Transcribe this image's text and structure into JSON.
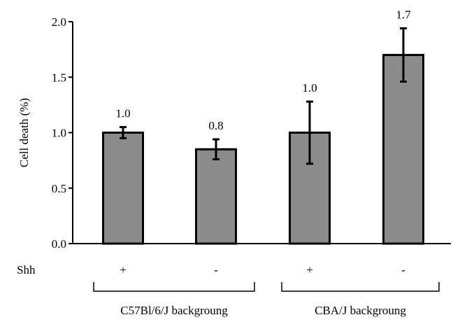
{
  "chart_data": {
    "type": "bar",
    "ylabel": "Cell death (%)",
    "ylim": [
      0,
      2.0
    ],
    "yticks": [
      "0.0",
      "0.5",
      "1.0",
      "1.5",
      "2.0"
    ],
    "grid": false,
    "legend": "none",
    "row_label": "Shh",
    "categories": [
      "+",
      "-",
      "+",
      "-"
    ],
    "values": [
      1.0,
      0.85,
      1.0,
      1.7
    ],
    "error_low": [
      0.95,
      0.76,
      0.72,
      1.46
    ],
    "error_high": [
      1.05,
      0.94,
      1.28,
      1.94
    ],
    "data_labels": [
      "1.0",
      "0.8",
      "1.0",
      "1.7"
    ],
    "groups": [
      {
        "label": "C57Bl/6/J backgroung",
        "bars": [
          0,
          1
        ]
      },
      {
        "label": "CBA/J backgroung",
        "bars": [
          2,
          3
        ]
      }
    ],
    "colors": {
      "bar_fill": "#8c8c8c",
      "bar_stroke": "#000000"
    }
  }
}
